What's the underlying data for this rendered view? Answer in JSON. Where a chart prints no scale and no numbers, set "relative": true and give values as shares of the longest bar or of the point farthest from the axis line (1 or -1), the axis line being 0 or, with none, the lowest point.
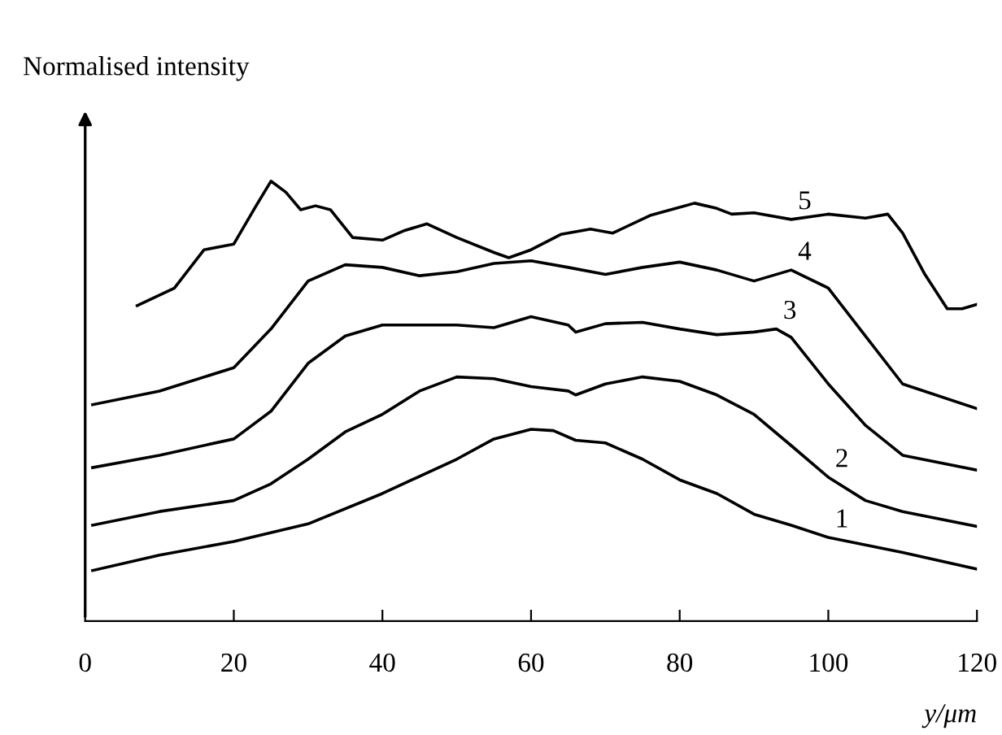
{
  "chart_data": {
    "type": "line",
    "relative": true,
    "ylabel": "Normalised intensity",
    "xlabel": "y/μm",
    "xlim": [
      0,
      120
    ],
    "xticks": [
      0,
      20,
      40,
      60,
      80,
      100,
      120
    ],
    "grid": false,
    "legend": false,
    "marker": "none",
    "line_style": "solid",
    "series": [
      {
        "name": "1",
        "color": "#000000",
        "x": [
          1,
          10,
          20,
          30,
          40,
          50,
          55,
          60,
          63,
          66,
          70,
          75,
          80,
          85,
          90,
          95,
          100,
          110,
          120
        ],
        "values": [
          0.115,
          0.15,
          0.181,
          0.221,
          0.29,
          0.368,
          0.414,
          0.436,
          0.433,
          0.411,
          0.405,
          0.368,
          0.321,
          0.29,
          0.243,
          0.218,
          0.19,
          0.156,
          0.118
        ]
      },
      {
        "name": "2",
        "color": "#000000",
        "x": [
          1,
          10,
          20,
          25,
          30,
          35,
          40,
          45,
          50,
          55,
          60,
          65,
          66,
          70,
          75,
          80,
          85,
          90,
          95,
          100,
          105,
          110,
          120
        ],
        "values": [
          0.218,
          0.249,
          0.274,
          0.312,
          0.368,
          0.43,
          0.47,
          0.523,
          0.555,
          0.551,
          0.533,
          0.523,
          0.514,
          0.539,
          0.555,
          0.545,
          0.514,
          0.47,
          0.399,
          0.327,
          0.274,
          0.249,
          0.215
        ]
      },
      {
        "name": "3",
        "color": "#000000",
        "x": [
          1,
          10,
          20,
          25,
          30,
          35,
          40,
          50,
          55,
          60,
          65,
          66,
          70,
          75,
          80,
          85,
          90,
          93,
          95,
          100,
          105,
          110,
          120
        ],
        "values": [
          0.349,
          0.377,
          0.414,
          0.477,
          0.586,
          0.648,
          0.673,
          0.673,
          0.667,
          0.692,
          0.673,
          0.657,
          0.676,
          0.679,
          0.664,
          0.651,
          0.657,
          0.664,
          0.645,
          0.539,
          0.445,
          0.377,
          0.343
        ]
      },
      {
        "name": "4",
        "color": "#000000",
        "x": [
          1,
          10,
          20,
          25,
          30,
          35,
          40,
          45,
          50,
          55,
          60,
          65,
          70,
          75,
          80,
          85,
          90,
          95,
          100,
          105,
          110,
          120
        ],
        "values": [
          0.492,
          0.523,
          0.576,
          0.664,
          0.773,
          0.81,
          0.804,
          0.785,
          0.794,
          0.813,
          0.819,
          0.804,
          0.788,
          0.804,
          0.816,
          0.798,
          0.773,
          0.798,
          0.757,
          0.648,
          0.539,
          0.483
        ]
      },
      {
        "name": "5",
        "color": "#000000",
        "x": [
          7,
          12,
          16,
          20,
          23,
          25,
          27,
          29,
          31,
          33,
          36,
          40,
          43,
          46,
          50,
          55,
          57,
          60,
          64,
          68,
          71,
          76,
          82,
          85,
          87,
          90,
          95,
          100,
          105,
          108,
          110,
          113,
          116,
          118,
          120
        ],
        "values": [
          0.717,
          0.757,
          0.844,
          0.857,
          0.944,
          1.0,
          0.975,
          0.935,
          0.944,
          0.935,
          0.872,
          0.866,
          0.888,
          0.903,
          0.872,
          0.838,
          0.826,
          0.844,
          0.879,
          0.891,
          0.882,
          0.922,
          0.95,
          0.938,
          0.925,
          0.928,
          0.913,
          0.925,
          0.916,
          0.925,
          0.882,
          0.788,
          0.71,
          0.71,
          0.72
        ]
      }
    ]
  }
}
